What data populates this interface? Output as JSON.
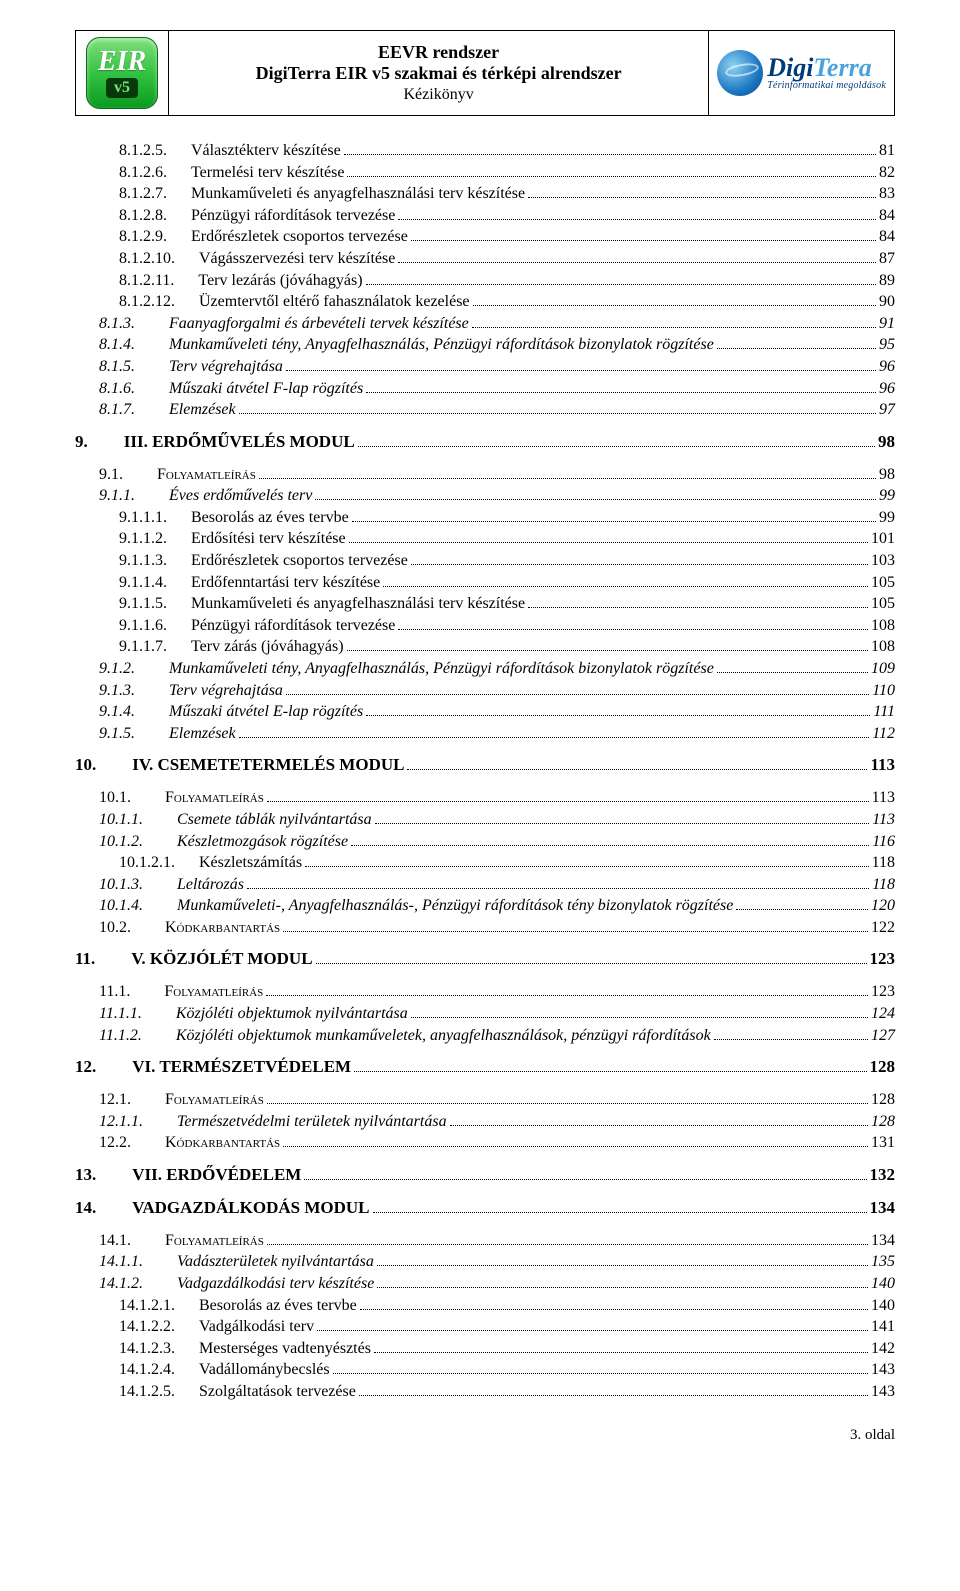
{
  "header": {
    "line1": "EEVR rendszer",
    "line2": "DigiTerra EIR v5 szakmai és térképi alrendszer",
    "line3": "Kézikönyv",
    "eir_top": "EIR",
    "eir_bot": "v5",
    "logo_dark": "Digi",
    "logo_light": "Terra",
    "logo_sub": "Térinformatikai megoldások"
  },
  "toc": [
    {
      "lvl": 3,
      "num": "8.1.2.5.",
      "title": "Választékterv készítése",
      "page": "81",
      "style": ""
    },
    {
      "lvl": 3,
      "num": "8.1.2.6.",
      "title": "Termelési terv készítése",
      "page": "82",
      "style": ""
    },
    {
      "lvl": 3,
      "num": "8.1.2.7.",
      "title": "Munkaműveleti és anyagfelhasználási terv készítése",
      "page": "83",
      "style": ""
    },
    {
      "lvl": 3,
      "num": "8.1.2.8.",
      "title": "Pénzügyi ráfordítások tervezése",
      "page": "84",
      "style": ""
    },
    {
      "lvl": 3,
      "num": "8.1.2.9.",
      "title": "Erdőrészletek csoportos tervezése",
      "page": "84",
      "style": ""
    },
    {
      "lvl": 3,
      "num": "8.1.2.10.",
      "title": "Vágásszervezési terv készítése",
      "page": "87",
      "style": ""
    },
    {
      "lvl": 3,
      "num": "8.1.2.11.",
      "title": "Terv lezárás (jóváhagyás)",
      "page": "89",
      "style": ""
    },
    {
      "lvl": 3,
      "num": "8.1.2.12.",
      "title": "Üzemtervtől eltérő fahasználatok kezelése",
      "page": "90",
      "style": ""
    },
    {
      "lvl": 2,
      "num": "8.1.3.",
      "title": "Faanyagforgalmi és árbevételi tervek készítése",
      "page": "91",
      "style": "italic"
    },
    {
      "lvl": 2,
      "num": "8.1.4.",
      "title": "Munkaműveleti tény, Anyagfelhasználás, Pénzügyi ráfordítások bizonylatok rögzítése",
      "page": "95",
      "style": "italic"
    },
    {
      "lvl": 2,
      "num": "8.1.5.",
      "title": "Terv végrehajtása",
      "page": "96",
      "style": "italic"
    },
    {
      "lvl": 2,
      "num": "8.1.6.",
      "title": "Műszaki átvétel F-lap rögzítés",
      "page": "96",
      "style": "italic"
    },
    {
      "lvl": 2,
      "num": "8.1.7.",
      "title": "Elemzések",
      "page": "97",
      "style": "italic"
    },
    {
      "gap": true
    },
    {
      "lvl": 1,
      "num": "9.",
      "title": "III. ERDŐMŰVELÉS MODUL",
      "page": "98",
      "style": "bold"
    },
    {
      "gap": true
    },
    {
      "lvl": 2,
      "num": "9.1.",
      "title": "Folyamatleírás",
      "page": "98",
      "style": "sc"
    },
    {
      "lvl": 2,
      "num": "9.1.1.",
      "title": "Éves erdőművelés terv",
      "page": "99",
      "style": "italic"
    },
    {
      "lvl": 3,
      "num": "9.1.1.1.",
      "title": "Besorolás az éves tervbe",
      "page": "99",
      "style": ""
    },
    {
      "lvl": 3,
      "num": "9.1.1.2.",
      "title": "Erdősítési terv készítése",
      "page": "101",
      "style": ""
    },
    {
      "lvl": 3,
      "num": "9.1.1.3.",
      "title": "Erdőrészletek csoportos tervezése",
      "page": "103",
      "style": ""
    },
    {
      "lvl": 3,
      "num": "9.1.1.4.",
      "title": "Erdőfenntartási terv készítése",
      "page": "105",
      "style": ""
    },
    {
      "lvl": 3,
      "num": "9.1.1.5.",
      "title": "Munkaműveleti és anyagfelhasználási terv készítése",
      "page": "105",
      "style": ""
    },
    {
      "lvl": 3,
      "num": "9.1.1.6.",
      "title": "Pénzügyi ráfordítások tervezése",
      "page": "108",
      "style": ""
    },
    {
      "lvl": 3,
      "num": "9.1.1.7.",
      "title": "Terv zárás (jóváhagyás)",
      "page": "108",
      "style": ""
    },
    {
      "lvl": 2,
      "num": "9.1.2.",
      "title": "Munkaműveleti tény, Anyagfelhasználás, Pénzügyi ráfordítások bizonylatok rögzítése",
      "page": "109",
      "style": "italic"
    },
    {
      "lvl": 2,
      "num": "9.1.3.",
      "title": "Terv végrehajtása",
      "page": "110",
      "style": "italic"
    },
    {
      "lvl": 2,
      "num": "9.1.4.",
      "title": "Műszaki átvétel E-lap rögzítés",
      "page": "111",
      "style": "italic"
    },
    {
      "lvl": 2,
      "num": "9.1.5.",
      "title": "Elemzések",
      "page": "112",
      "style": "italic"
    },
    {
      "gap": true
    },
    {
      "lvl": 1,
      "num": "10.",
      "title": "IV. CSEMETETERMELÉS MODUL",
      "page": "113",
      "style": "bold"
    },
    {
      "gap": true
    },
    {
      "lvl": 2,
      "num": "10.1.",
      "title": "Folyamatleírás",
      "page": "113",
      "style": "sc"
    },
    {
      "lvl": 2,
      "num": "10.1.1.",
      "title": "Csemete táblák nyilvántartása",
      "page": "113",
      "style": "italic"
    },
    {
      "lvl": 2,
      "num": "10.1.2.",
      "title": "Készletmozgások rögzítése",
      "page": "116",
      "style": "italic"
    },
    {
      "lvl": 3,
      "num": "10.1.2.1.",
      "title": "Készletszámítás",
      "page": "118",
      "style": ""
    },
    {
      "lvl": 2,
      "num": "10.1.3.",
      "title": "Leltározás",
      "page": "118",
      "style": "italic"
    },
    {
      "lvl": 2,
      "num": "10.1.4.",
      "title": "Munkaműveleti-, Anyagfelhasználás-, Pénzügyi ráfordítások tény bizonylatok rögzítése",
      "page": "120",
      "style": "italic"
    },
    {
      "lvl": 2,
      "num": "10.2.",
      "title": "Kódkarbantartás",
      "page": "122",
      "style": "sc"
    },
    {
      "gap": true
    },
    {
      "lvl": 1,
      "num": "11.",
      "title": "V. KÖZJÓLÉT MODUL",
      "page": "123",
      "style": "bold"
    },
    {
      "gap": true
    },
    {
      "lvl": 2,
      "num": "11.1.",
      "title": "Folyamatleírás",
      "page": "123",
      "style": "sc"
    },
    {
      "lvl": 2,
      "num": "11.1.1.",
      "title": "Közjóléti objektumok nyilvántartása",
      "page": "124",
      "style": "italic"
    },
    {
      "lvl": 2,
      "num": "11.1.2.",
      "title": "Közjóléti objektumok munkaműveletek, anyagfelhasználások, pénzügyi ráfordítások",
      "page": "127",
      "style": "italic"
    },
    {
      "gap": true
    },
    {
      "lvl": 1,
      "num": "12.",
      "title": "VI. TERMÉSZETVÉDELEM",
      "page": "128",
      "style": "bold"
    },
    {
      "gap": true
    },
    {
      "lvl": 2,
      "num": "12.1.",
      "title": "Folyamatleírás",
      "page": "128",
      "style": "sc"
    },
    {
      "lvl": 2,
      "num": "12.1.1.",
      "title": "Természetvédelmi területek nyilvántartása",
      "page": "128",
      "style": "italic"
    },
    {
      "lvl": 2,
      "num": "12.2.",
      "title": "Kódkarbantartás",
      "page": "131",
      "style": "sc"
    },
    {
      "gap": true
    },
    {
      "lvl": 1,
      "num": "13.",
      "title": "VII. ERDŐVÉDELEM",
      "page": "132",
      "style": "bold"
    },
    {
      "gap": true
    },
    {
      "lvl": 1,
      "num": "14.",
      "title": "VADGAZDÁLKODÁS MODUL",
      "page": "134",
      "style": "bold"
    },
    {
      "gap": true
    },
    {
      "lvl": 2,
      "num": "14.1.",
      "title": "Folyamatleírás",
      "page": "134",
      "style": "sc"
    },
    {
      "lvl": 2,
      "num": "14.1.1.",
      "title": "Vadászterületek nyilvántartása",
      "page": "135",
      "style": "italic"
    },
    {
      "lvl": 2,
      "num": "14.1.2.",
      "title": "Vadgazdálkodási terv készítése",
      "page": "140",
      "style": "italic"
    },
    {
      "lvl": 3,
      "num": "14.1.2.1.",
      "title": "Besorolás az éves tervbe",
      "page": "140",
      "style": ""
    },
    {
      "lvl": 3,
      "num": "14.1.2.2.",
      "title": "Vadgálkodási terv",
      "page": "141",
      "style": ""
    },
    {
      "lvl": 3,
      "num": "14.1.2.3.",
      "title": "Mesterséges vadtenyésztés",
      "page": "142",
      "style": ""
    },
    {
      "lvl": 3,
      "num": "14.1.2.4.",
      "title": "Vadállománybecslés",
      "page": "143",
      "style": ""
    },
    {
      "lvl": 3,
      "num": "14.1.2.5.",
      "title": "Szolgáltatások tervezése",
      "page": "143",
      "style": ""
    }
  ],
  "footer": "3. oldal"
}
